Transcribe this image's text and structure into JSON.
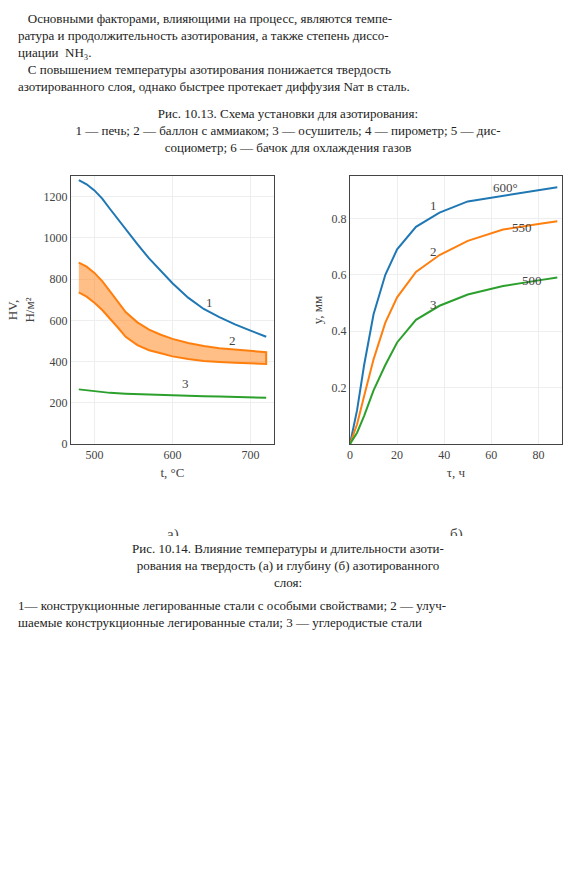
{
  "text": [
    "   Основными факторами, влияющими на процесс, являются темпе-",
    "ратура и продолжительность азотирования, а также степень диссо-",
    "циации  NH₃.",
    "   С повышением температуры азотирования понижается твердость",
    "азотированного слоя, однако быстрее протекает диффузия Nат в сталь."
  ],
  "caption1": [
    "Рис. 10.13. Схема установки для азотирования:",
    "1 — печь; 2 — баллон с аммиаком; 3 — осушитель; 4 — пирометр; 5 — дис-",
    "социометр; 6 — бачок для охлаждения газов"
  ],
  "caption2": [
    "Рис. 10.14. Влияние температуры и длительности азоти-",
    "рования на твердость (а) и глубину (б) азотированного",
    "слоя:"
  ],
  "caption3": [
    "1— конструкционные легированные стали с особыми свойствами; 2 — улуч-",
    "шаемые конструкционные легированные стали; 3 — углеродистые стали"
  ],
  "chart_data": [
    {
      "type": "line",
      "subtitle": "а)",
      "xlabel": "t, °C",
      "ylabel": [
        "HV,",
        "Н/м²"
      ],
      "xlim": [
        470,
        730
      ],
      "xticks": [
        500,
        600,
        700
      ],
      "ylim": [
        0,
        1300
      ],
      "yticks": [
        0,
        200,
        400,
        600,
        800,
        1000,
        1200
      ],
      "grid": true,
      "series": [
        {
          "x": [
            480,
            490,
            500,
            510,
            520,
            530,
            540,
            555,
            570,
            585,
            600,
            620,
            640,
            660,
            680,
            700,
            720
          ],
          "values": [
            1280,
            1260,
            1230,
            1190,
            1140,
            1090,
            1040,
            970,
            900,
            840,
            780,
            710,
            655,
            615,
            580,
            550,
            520
          ]
        },
        {
          "type": "band",
          "x": [
            480,
            490,
            500,
            510,
            520,
            530,
            540,
            555,
            570,
            585,
            600,
            620,
            640,
            660,
            680,
            700,
            720
          ],
          "upper": [
            880,
            860,
            830,
            790,
            740,
            690,
            640,
            590,
            555,
            530,
            510,
            490,
            475,
            465,
            458,
            450,
            445
          ],
          "lower": [
            735,
            715,
            685,
            650,
            610,
            565,
            520,
            480,
            455,
            440,
            425,
            412,
            403,
            398,
            394,
            390,
            388
          ]
        },
        {
          "x": [
            480,
            500,
            520,
            540,
            560,
            580,
            600,
            620,
            640,
            660,
            680,
            700,
            720
          ],
          "values": [
            265,
            255,
            248,
            244,
            241,
            238,
            236,
            234,
            232,
            230,
            228,
            226,
            224
          ]
        }
      ],
      "annotations": [
        {
          "x": 640,
          "y": 640,
          "text": "1"
        },
        {
          "x": 670,
          "y": 455,
          "text": "2"
        },
        {
          "x": 610,
          "y": 248,
          "text": "3"
        }
      ]
    },
    {
      "type": "line",
      "subtitle": "б)",
      "xlabel": "τ, ч",
      "ylabel": [
        "y, мм"
      ],
      "xlim": [
        0,
        90
      ],
      "xticks": [
        0,
        20,
        40,
        60,
        80
      ],
      "ylim": [
        0,
        0.95
      ],
      "yticks": [
        0.2,
        0.4,
        0.6,
        0.8
      ],
      "grid": true,
      "x": [
        0,
        3,
        6,
        10,
        15,
        20,
        28,
        38,
        50,
        65,
        80,
        88
      ],
      "series": [
        {
          "values": [
            0,
            0.12,
            0.28,
            0.46,
            0.6,
            0.69,
            0.77,
            0.82,
            0.86,
            0.88,
            0.9,
            0.91
          ]
        },
        {
          "values": [
            0,
            0.07,
            0.17,
            0.3,
            0.43,
            0.52,
            0.61,
            0.67,
            0.72,
            0.76,
            0.78,
            0.79
          ]
        },
        {
          "values": [
            0,
            0.04,
            0.1,
            0.19,
            0.28,
            0.36,
            0.44,
            0.49,
            0.53,
            0.56,
            0.58,
            0.59
          ]
        }
      ],
      "annotations": [
        {
          "x": 60,
          "y": 0.875,
          "text": "600°"
        },
        {
          "x": 68,
          "y": 0.735,
          "text": "550"
        },
        {
          "x": 72,
          "y": 0.545,
          "text": "500"
        },
        {
          "x": 33,
          "y": 0.81,
          "text": "1"
        },
        {
          "x": 33,
          "y": 0.65,
          "text": "2"
        },
        {
          "x": 33,
          "y": 0.46,
          "text": "3"
        }
      ]
    }
  ]
}
